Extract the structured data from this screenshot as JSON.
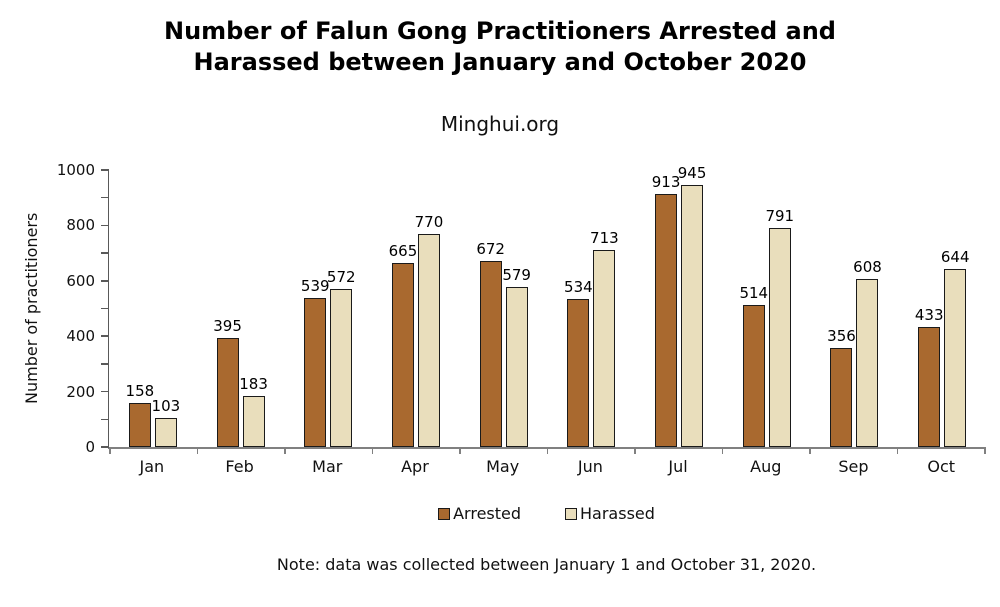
{
  "title": {
    "line1": "Number of Falun Gong Practitioners Arrested and",
    "line2": "Harassed between January and October 2020"
  },
  "subtitle": "Minghui.org",
  "note": "Note: data was collected between January 1 and October 31, 2020.",
  "chart_data": {
    "type": "bar",
    "title": "Number of Falun Gong Practitioners Arrested and Harassed between January and October 2020",
    "subtitle": "Minghui.org",
    "categories": [
      "Jan",
      "Feb",
      "Mar",
      "Apr",
      "May",
      "Jun",
      "Jul",
      "Aug",
      "Sep",
      "Oct"
    ],
    "series": [
      {
        "name": "Arrested",
        "color": "#A9692F",
        "values": [
          158,
          395,
          539,
          665,
          672,
          534,
          913,
          514,
          356,
          433
        ]
      },
      {
        "name": "Harassed",
        "color": "#E9DEBC",
        "values": [
          103,
          183,
          572,
          770,
          579,
          713,
          945,
          791,
          608,
          644
        ]
      }
    ],
    "xlabel": "",
    "ylabel": "Number of practitioners",
    "ylim": [
      0,
      1000
    ],
    "ytick_step": 200,
    "yminor_tick_step": 100,
    "grid": false,
    "legend_position": "bottom",
    "bar_outline_color": "#1A1A1A",
    "axis_color": "#808080",
    "note": "Note: data was collected between January 1 and October 31, 2020."
  }
}
